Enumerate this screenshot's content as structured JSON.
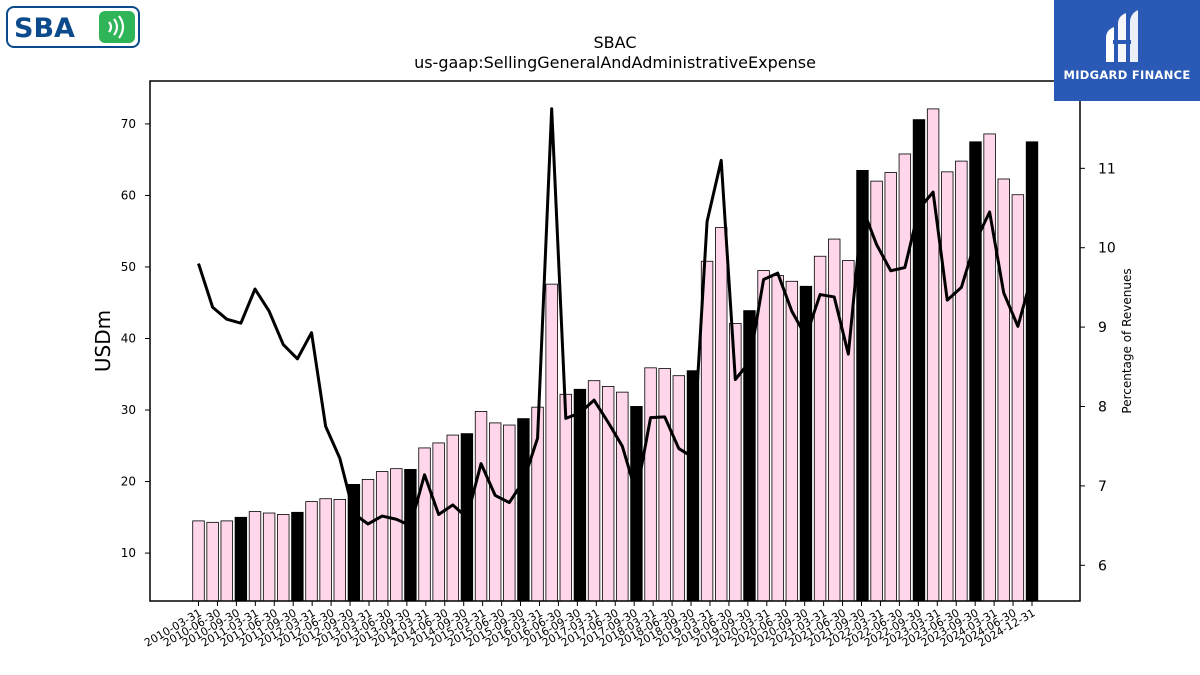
{
  "logos": {
    "left": {
      "text": "SBA",
      "icon": "signal-waves-icon",
      "accent": "#0b4a8b",
      "icon_bg": "#2fb457"
    },
    "right": {
      "text": "MIDGARD FINANCE",
      "icon": "midgard-m-icon",
      "bg": "#2a5ab5"
    }
  },
  "chart_data": {
    "type": "bar",
    "title": "SBAC",
    "subtitle": "us-gaap:SellingGeneralAndAdministrativeExpense",
    "ylabel": "USDm",
    "y2label": "Percentage of Revenues",
    "ylim": [
      3.3,
      76
    ],
    "y2lim": [
      5.55,
      12.1
    ],
    "yticks": [
      10,
      20,
      30,
      40,
      50,
      60,
      70
    ],
    "y2ticks": [
      6,
      7,
      8,
      9,
      10,
      11
    ],
    "x_tick_labels": [
      "2010-03-31",
      "2010-06-30",
      "2010-09-30",
      "2011-03-31",
      "2011-06-30",
      "2011-09-30",
      "2012-03-31",
      "2012-06-30",
      "2012-09-30",
      "2013-03-31",
      "2013-06-30",
      "2013-09-30",
      "2014-03-31",
      "2014-06-30",
      "2014-09-30",
      "2015-03-31",
      "2015-06-30",
      "2015-09-30",
      "2016-03-31",
      "2016-06-30",
      "2016-09-30",
      "2017-03-31",
      "2017-06-30",
      "2017-09-30",
      "2018-03-31",
      "2018-06-30",
      "2018-09-30",
      "2019-03-31",
      "2019-06-30",
      "2019-09-30",
      "2020-03-31",
      "2020-06-30",
      "2020-09-30",
      "2021-03-31",
      "2021-06-30",
      "2021-09-30",
      "2022-03-31",
      "2022-06-30",
      "2022-09-30",
      "2023-03-31",
      "2023-06-30",
      "2023-09-30",
      "2024-03-31",
      "2024-06-30",
      "2024-12-31"
    ],
    "bar_series": {
      "name": "SG&A",
      "quarterly_color": "#ffd6ea",
      "annual_color": "#000000",
      "values": [
        14.5,
        14.3,
        14.5,
        15.0,
        15.8,
        15.6,
        15.4,
        15.7,
        17.2,
        17.6,
        17.5,
        19.6,
        20.3,
        21.4,
        21.8,
        21.7,
        24.7,
        25.4,
        26.5,
        26.7,
        29.8,
        28.2,
        27.9,
        28.8,
        30.4,
        47.6,
        32.2,
        32.9,
        34.1,
        33.3,
        32.5,
        30.5,
        35.9,
        35.8,
        34.8,
        35.5,
        50.8,
        55.5,
        42.1,
        43.9,
        49.5,
        48.8,
        48.0,
        47.3,
        51.5,
        53.9,
        50.9,
        63.5,
        62.0,
        63.2,
        65.8,
        70.6,
        72.1,
        63.3,
        64.8,
        67.5,
        68.6,
        62.3,
        60.1,
        67.5
      ],
      "annual_flags": [
        0,
        0,
        0,
        1,
        0,
        0,
        0,
        1,
        0,
        0,
        0,
        1,
        0,
        0,
        0,
        1,
        0,
        0,
        0,
        1,
        0,
        0,
        0,
        1,
        0,
        0,
        0,
        1,
        0,
        0,
        0,
        1,
        0,
        0,
        0,
        1,
        0,
        0,
        0,
        1,
        0,
        0,
        0,
        1,
        0,
        0,
        0,
        1,
        0,
        0,
        0,
        1,
        0,
        0,
        0,
        1,
        0,
        0,
        0,
        1
      ]
    },
    "line_series": {
      "name": "Percentage of Revenues",
      "values": [
        9.8,
        9.25,
        9.1,
        9.05,
        9.48,
        9.2,
        8.78,
        8.6,
        8.93,
        7.75,
        7.35,
        6.65,
        6.52,
        6.62,
        6.58,
        6.5,
        7.14,
        6.64,
        6.76,
        6.6,
        7.28,
        6.88,
        6.79,
        7.06,
        7.6,
        11.75,
        7.85,
        7.92,
        8.08,
        7.8,
        7.5,
        6.9,
        7.86,
        7.87,
        7.47,
        7.36,
        10.33,
        11.1,
        8.34,
        8.56,
        9.6,
        9.68,
        9.2,
        8.88,
        9.41,
        9.38,
        8.66,
        10.5,
        10.04,
        9.71,
        9.75,
        10.49,
        10.7,
        9.34,
        9.5,
        10.08,
        10.45,
        9.43,
        9.01,
        9.65
      ]
    }
  }
}
